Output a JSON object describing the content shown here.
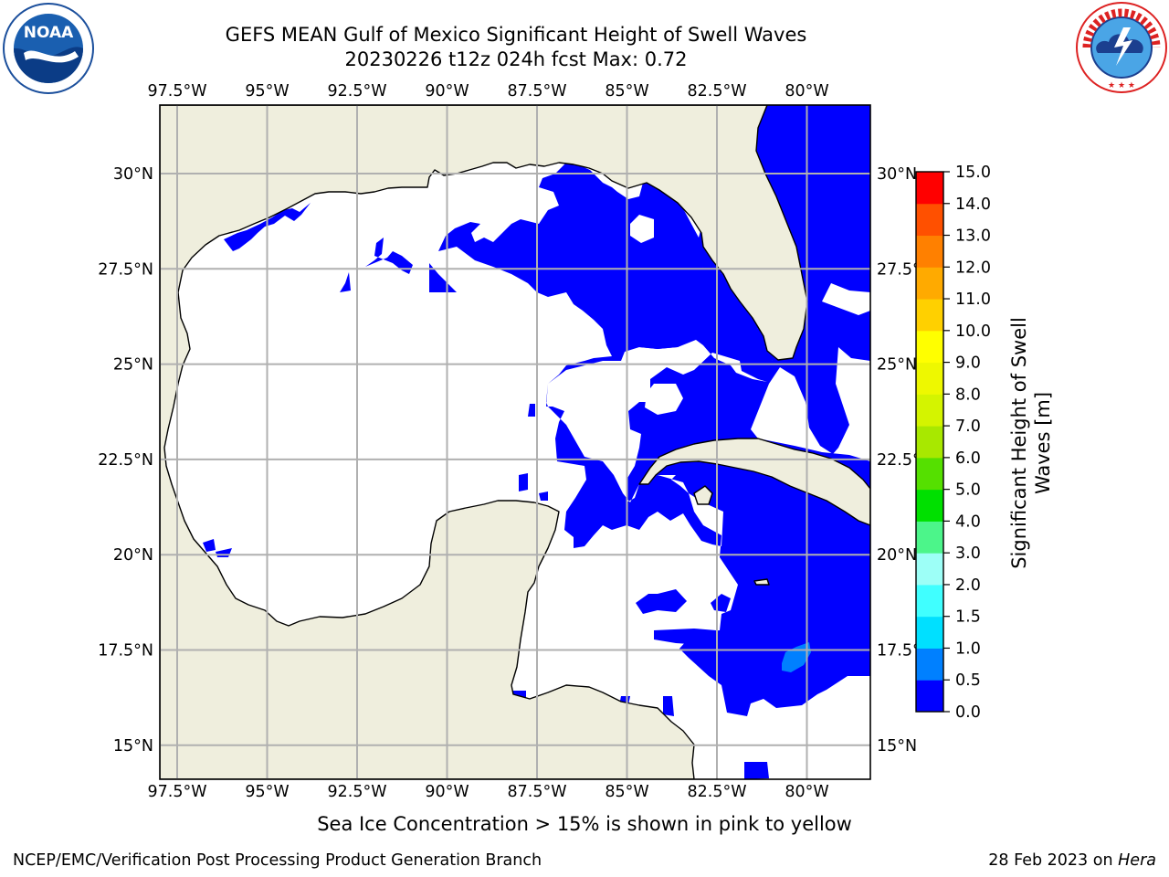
{
  "header": {
    "title_line1": "GEFS MEAN Gulf of Mexico Significant Height of Swell Waves",
    "title_line2": "20230226 t12z 024h fcst   Max: 0.72"
  },
  "logos": {
    "noaa": {
      "center_text": "NOAA",
      "ring_text": "NATIONAL OCEANIC AND ATMOSPHERIC ADMINISTRATION · U.S. DEPARTMENT OF COMMERCE"
    },
    "nws": {
      "ring_text": "NATIONAL WEATHER SERVICE"
    }
  },
  "map": {
    "lon_labels": [
      "97.5°W",
      "95°W",
      "92.5°W",
      "90°W",
      "87.5°W",
      "85°W",
      "82.5°W",
      "80°W"
    ],
    "lat_labels": [
      "30°N",
      "27.5°N",
      "25°N",
      "22.5°N",
      "20°N",
      "17.5°N",
      "15°N"
    ],
    "colors": {
      "land": "#efeedd",
      "ocean_zero": "#ffffff",
      "swell_low": "#0000ff",
      "swell_mid": "#0080ff",
      "grid": "#b0b0b0"
    }
  },
  "colorbar": {
    "label": "Significant Height of Swell Waves [m]",
    "ticks": [
      "15.0",
      "14.0",
      "13.0",
      "12.0",
      "11.0",
      "10.0",
      "9.0",
      "8.0",
      "7.0",
      "6.0",
      "5.0",
      "4.0",
      "3.0",
      "2.0",
      "1.5",
      "1.0",
      "0.5",
      "0.0"
    ],
    "colors": [
      "#0000ff",
      "#0080ff",
      "#00e0ff",
      "#40ffff",
      "#9dfff7",
      "#4cf58a",
      "#00e000",
      "#55e000",
      "#a8e800",
      "#d4f400",
      "#eef800",
      "#ffff00",
      "#ffd000",
      "#ffaa00",
      "#ff8000",
      "#ff5000",
      "#ff0000"
    ]
  },
  "footer": {
    "note": "Sea Ice Concentration > 15% is shown in pink to yellow",
    "credit": "NCEP/EMC/Verification Post Processing Product Generation Branch",
    "date": "28 Feb 2023 on",
    "host": "Hera"
  }
}
